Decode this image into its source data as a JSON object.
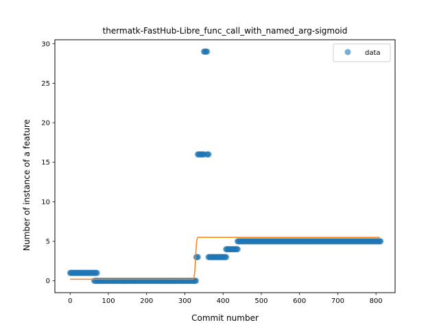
{
  "chart_data": {
    "type": "scatter",
    "title": "thermatk-FastHub-Libre_func_call_with_named_arg-sigmoid",
    "xlabel": "Commit number",
    "ylabel": "Number of instance of a feature",
    "xlim": [
      -40,
      850
    ],
    "ylim": [
      -1.5,
      30.5
    ],
    "xticks": [
      0,
      100,
      200,
      300,
      400,
      500,
      600,
      700,
      800
    ],
    "yticks": [
      0,
      5,
      10,
      15,
      20,
      25,
      30
    ],
    "grid": false,
    "legend_position": "top-right",
    "series": [
      {
        "name": "data",
        "kind": "points",
        "color": "#1f77b4",
        "segments": [
          {
            "x_start": 0,
            "x_end": 70,
            "step": 2,
            "y": 1
          },
          {
            "x_start": 63,
            "x_end": 330,
            "step": 2,
            "y": 0
          },
          {
            "x_start": 330,
            "x_end": 334,
            "step": 2,
            "y": 3
          },
          {
            "x_start": 334,
            "x_end": 350,
            "step": 2,
            "y": 16
          },
          {
            "x_start": 350,
            "x_end": 358,
            "step": 2,
            "y": 29
          },
          {
            "x_start": 358,
            "x_end": 362,
            "step": 2,
            "y": 16
          },
          {
            "x_start": 362,
            "x_end": 408,
            "step": 2,
            "y": 3
          },
          {
            "x_start": 408,
            "x_end": 438,
            "step": 2,
            "y": 4
          },
          {
            "x_start": 438,
            "x_end": 812,
            "step": 2,
            "y": 5
          }
        ]
      },
      {
        "name": "",
        "kind": "line",
        "color": "#ff7f0e",
        "x": [
          0,
          322,
          324,
          326,
          328,
          330,
          332,
          334,
          810
        ],
        "y": [
          0.2,
          0.2,
          0.4,
          1.2,
          2.9,
          4.6,
          5.3,
          5.5,
          5.5
        ]
      }
    ]
  }
}
